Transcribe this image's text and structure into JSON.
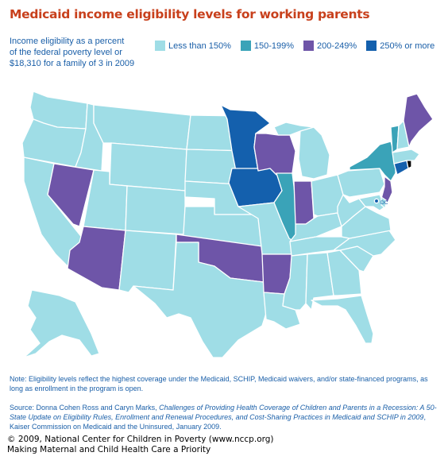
{
  "title": "Medicaid income eligibility levels for working parents",
  "subtitle_lines": [
    "Income eligibility as a percent",
    "of the federal poverty level or",
    "$18,310 for a family of 3 in 2009"
  ],
  "legend": [
    {
      "label": "Less than 150%",
      "color": "#9fdde6"
    },
    {
      "label": "150-199%",
      "color": "#3aa3b8"
    },
    {
      "label": "200-249%",
      "color": "#6e55a8"
    },
    {
      "label": "250% or more",
      "color": "#1460ad"
    }
  ],
  "map": {
    "dc_label": "DC",
    "categories_by_state": {
      "less_than_150": [
        "WA",
        "OR",
        "CA",
        "ID",
        "MT",
        "WY",
        "UT",
        "CO",
        "NM",
        "TX",
        "ND",
        "SD",
        "NE",
        "KS",
        "MO",
        "LA",
        "MS",
        "AL",
        "GA",
        "FL",
        "SC",
        "NC",
        "TN",
        "KY",
        "VA",
        "WV",
        "OH",
        "PA",
        "MI",
        "MD",
        "DE",
        "NH",
        "MA",
        "AK"
      ],
      "150_199": [
        "NY",
        "VT",
        "IL"
      ],
      "200_249": [
        "NV",
        "AZ",
        "WI",
        "IN",
        "OK",
        "AR",
        "NJ",
        "ME"
      ],
      "250_or_more": [
        "MN",
        "IA",
        "CT",
        "DC"
      ]
    }
  },
  "note": "Note: Eligibility levels reflect the highest coverage under the Medicaid, SCHIP, Medicaid waivers, and/or state-financed programs, as long as enrollment in the program is open.",
  "source": {
    "prefix": "Source: Donna Cohen Ross and Caryn Marks, ",
    "italic": "Challenges of Providing Health Coverage of Children and Parents in a Recession: A 50-State Update on Eligibility Rules, Enrollment and Renewal Procedures, and Cost-Sharing Practices in Medicaid and SCHIP in 2009",
    "suffix": ", Kaiser Commission on Medicaid and the Uninsured, January 2009."
  },
  "footer_lines": [
    "© 2009, National Center for Children in Poverty (www.nccp.org)",
    "Making Maternal and Child Health Care a Priority"
  ]
}
